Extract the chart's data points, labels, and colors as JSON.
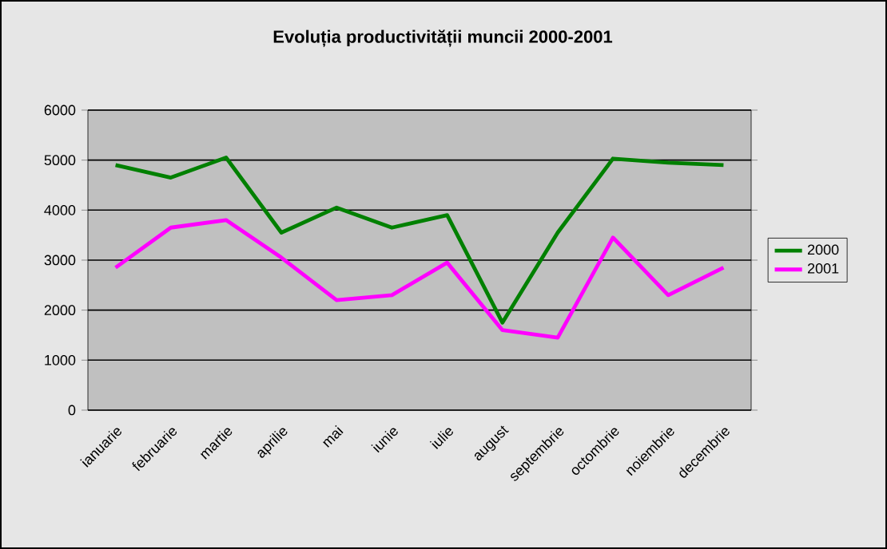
{
  "chart_data": {
    "type": "line",
    "title": "Evoluția productivității muncii 2000-2001",
    "categories": [
      "ianuarie",
      "februarie",
      "martie",
      "aprilie",
      "mai",
      "iunie",
      "iulie",
      "august",
      "septembrie",
      "octombrie",
      "noiembrie",
      "decembrie"
    ],
    "series": [
      {
        "name": "2000",
        "color": "#008000",
        "values": [
          4900,
          4650,
          5050,
          3550,
          4050,
          3650,
          3900,
          1750,
          3550,
          5030,
          4950,
          4900
        ]
      },
      {
        "name": "2001",
        "color": "#ff00ff",
        "values": [
          2850,
          3650,
          3800,
          3050,
          2200,
          2300,
          2950,
          1600,
          1450,
          3450,
          2300,
          2850
        ]
      }
    ],
    "ylim": [
      0,
      6000
    ],
    "yticks": [
      0,
      1000,
      2000,
      3000,
      4000,
      5000,
      6000
    ],
    "grid": "y",
    "legend": "right",
    "marker": "none",
    "line_style": "solid"
  }
}
